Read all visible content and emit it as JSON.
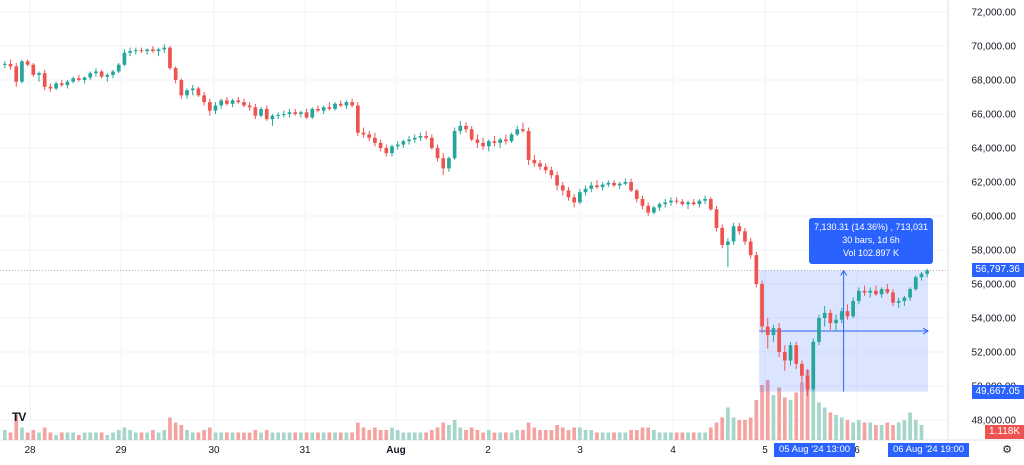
{
  "chart_data": {
    "type": "candlestick",
    "instrument_hint": "",
    "y_axis": {
      "min": 47500,
      "max": 72500,
      "ticks": [
        72000,
        70000,
        68000,
        66000,
        64000,
        62000,
        60000,
        58000,
        56000,
        54000,
        52000,
        50000,
        48000
      ],
      "tick_labels": [
        "72,000.00",
        "70,000.00",
        "68,000.00",
        "66,000.00",
        "64,000.00",
        "62,000.00",
        "60,000.00",
        "58,000.00",
        "56,000.00",
        "54,000.00",
        "52,000.00",
        "50,000.00",
        "48,000.00"
      ]
    },
    "x_axis": {
      "labels": [
        "28",
        "29",
        "30",
        "31",
        "Aug",
        "2",
        "3",
        "4",
        "5",
        "6"
      ]
    },
    "current_price": {
      "value": 56797.36,
      "label": "56,797.36"
    },
    "measure_low": {
      "value": 49667.05,
      "label": "49,667.05"
    },
    "volume_label": "1.118K",
    "grid": true,
    "colors": {
      "up": "#26a69a",
      "down": "#ef5350",
      "up_vol": "#a5d6c9",
      "down_vol": "#f5a3a1",
      "accent": "#2962ff",
      "grid": "#f0f3fa"
    },
    "candles": [
      [
        68900,
        69100,
        68700,
        68950
      ],
      [
        68950,
        69200,
        68600,
        68800
      ],
      [
        68800,
        69000,
        67600,
        67900
      ],
      [
        67900,
        69200,
        67800,
        69100
      ],
      [
        69100,
        69200,
        68800,
        68900
      ],
      [
        68900,
        69000,
        68200,
        68300
      ],
      [
        68300,
        68500,
        67900,
        68400
      ],
      [
        68400,
        68600,
        67400,
        67600
      ],
      [
        67600,
        67800,
        67300,
        67500
      ],
      [
        67500,
        67900,
        67400,
        67800
      ],
      [
        67800,
        68000,
        67600,
        67700
      ],
      [
        67700,
        68000,
        67500,
        67900
      ],
      [
        67900,
        68200,
        67800,
        68100
      ],
      [
        68100,
        68300,
        67900,
        68000
      ],
      [
        68000,
        68200,
        67800,
        68150
      ],
      [
        68150,
        68500,
        68000,
        68400
      ],
      [
        68400,
        68700,
        68200,
        68500
      ],
      [
        68500,
        68600,
        68100,
        68200
      ],
      [
        68200,
        68400,
        67900,
        68300
      ],
      [
        68300,
        68600,
        68100,
        68500
      ],
      [
        68500,
        69000,
        68400,
        68900
      ],
      [
        68900,
        69800,
        68800,
        69600
      ],
      [
        69600,
        69900,
        69400,
        69700
      ],
      [
        69700,
        69900,
        69500,
        69750
      ],
      [
        69750,
        69900,
        69600,
        69700
      ],
      [
        69700,
        69850,
        69500,
        69800
      ],
      [
        69800,
        70000,
        69600,
        69700
      ],
      [
        69700,
        69900,
        69400,
        69800
      ],
      [
        69800,
        70100,
        69600,
        69900
      ],
      [
        69900,
        70000,
        68600,
        68700
      ],
      [
        68700,
        68800,
        67800,
        68000
      ],
      [
        68000,
        68100,
        66900,
        67100
      ],
      [
        67100,
        67500,
        66900,
        67400
      ],
      [
        67400,
        67700,
        67100,
        67500
      ],
      [
        67500,
        67600,
        67000,
        67100
      ],
      [
        67100,
        67300,
        66500,
        66700
      ],
      [
        66700,
        66900,
        65900,
        66200
      ],
      [
        66200,
        66700,
        66000,
        66500
      ],
      [
        66500,
        66900,
        66300,
        66800
      ],
      [
        66800,
        67000,
        66500,
        66600
      ],
      [
        66600,
        66900,
        66400,
        66800
      ],
      [
        66800,
        67000,
        66600,
        66700
      ],
      [
        66700,
        66900,
        66400,
        66500
      ],
      [
        66500,
        66700,
        66200,
        66400
      ],
      [
        66400,
        66600,
        65700,
        65900
      ],
      [
        65900,
        66400,
        65800,
        66300
      ],
      [
        66300,
        66500,
        65600,
        65700
      ],
      [
        65700,
        66000,
        65300,
        65900
      ],
      [
        65900,
        66100,
        65700,
        65950
      ],
      [
        65950,
        66200,
        65800,
        66000
      ],
      [
        66000,
        66300,
        65800,
        66100
      ],
      [
        66100,
        66300,
        65900,
        66000
      ],
      [
        66000,
        66200,
        65800,
        66100
      ],
      [
        66100,
        66300,
        65700,
        65800
      ],
      [
        65800,
        66400,
        65700,
        66300
      ],
      [
        66300,
        66500,
        66100,
        66200
      ],
      [
        66200,
        66500,
        66000,
        66400
      ],
      [
        66400,
        66700,
        66200,
        66300
      ],
      [
        66300,
        66700,
        66200,
        66600
      ],
      [
        66600,
        66800,
        66400,
        66500
      ],
      [
        66500,
        66800,
        66300,
        66700
      ],
      [
        66700,
        66900,
        66400,
        66500
      ],
      [
        66500,
        66700,
        64700,
        64900
      ],
      [
        64900,
        65200,
        64600,
        64800
      ],
      [
        64800,
        65000,
        64400,
        64600
      ],
      [
        64600,
        64900,
        64100,
        64300
      ],
      [
        64300,
        64500,
        63800,
        64000
      ],
      [
        64000,
        64200,
        63500,
        63700
      ],
      [
        63700,
        64200,
        63500,
        64100
      ],
      [
        64100,
        64400,
        63900,
        64200
      ],
      [
        64200,
        64500,
        64000,
        64400
      ],
      [
        64400,
        64700,
        64200,
        64500
      ],
      [
        64500,
        64800,
        64300,
        64600
      ],
      [
        64600,
        64900,
        64400,
        64700
      ],
      [
        64700,
        65000,
        64500,
        64600
      ],
      [
        64600,
        64800,
        63900,
        64000
      ],
      [
        64000,
        64200,
        63200,
        63400
      ],
      [
        63400,
        63700,
        62400,
        62800
      ],
      [
        62800,
        63500,
        62600,
        63400
      ],
      [
        63400,
        65200,
        63300,
        65000
      ],
      [
        65000,
        65600,
        64800,
        65300
      ],
      [
        65300,
        65500,
        64900,
        65100
      ],
      [
        65100,
        65300,
        64400,
        64500
      ],
      [
        64500,
        64800,
        64000,
        64300
      ],
      [
        64300,
        64600,
        63900,
        64100
      ],
      [
        64100,
        64500,
        63800,
        64400
      ],
      [
        64400,
        64700,
        64100,
        64300
      ],
      [
        64300,
        64600,
        64000,
        64500
      ],
      [
        64500,
        64800,
        64200,
        64400
      ],
      [
        64400,
        64900,
        64300,
        64800
      ],
      [
        64800,
        65300,
        64700,
        65100
      ],
      [
        65100,
        65500,
        64900,
        65000
      ],
      [
        65000,
        65200,
        63000,
        63300
      ],
      [
        63300,
        63600,
        62900,
        63100
      ],
      [
        63100,
        63300,
        62700,
        62900
      ],
      [
        62900,
        63100,
        62500,
        62700
      ],
      [
        62700,
        62900,
        62200,
        62400
      ],
      [
        62400,
        62600,
        61500,
        61800
      ],
      [
        61800,
        62000,
        61200,
        61500
      ],
      [
        61500,
        61700,
        60900,
        61100
      ],
      [
        61100,
        61300,
        60500,
        60800
      ],
      [
        60800,
        61600,
        60700,
        61400
      ],
      [
        61400,
        61800,
        61200,
        61600
      ],
      [
        61600,
        62000,
        61400,
        61800
      ],
      [
        61800,
        62100,
        61600,
        61700
      ],
      [
        61700,
        62000,
        61500,
        61850
      ],
      [
        61850,
        62100,
        61700,
        61950
      ],
      [
        61950,
        62100,
        61700,
        61800
      ],
      [
        61800,
        62000,
        61600,
        61900
      ],
      [
        61900,
        62200,
        61800,
        62000
      ],
      [
        62000,
        62200,
        61400,
        61500
      ],
      [
        61500,
        61600,
        60800,
        61000
      ],
      [
        61000,
        61200,
        60400,
        60600
      ],
      [
        60600,
        60800,
        60000,
        60200
      ],
      [
        60200,
        60600,
        60100,
        60500
      ],
      [
        60500,
        60800,
        60300,
        60700
      ],
      [
        60700,
        61000,
        60500,
        60800
      ],
      [
        60800,
        61100,
        60600,
        60900
      ],
      [
        60900,
        61100,
        60700,
        60850
      ],
      [
        60850,
        61000,
        60600,
        60700
      ],
      [
        60700,
        60900,
        60400,
        60800
      ],
      [
        60800,
        61000,
        60600,
        60700
      ],
      [
        60700,
        61000,
        60500,
        60900
      ],
      [
        60900,
        61200,
        60700,
        61000
      ],
      [
        61000,
        61100,
        60300,
        60400
      ],
      [
        60400,
        60600,
        59100,
        59300
      ],
      [
        59300,
        59500,
        58100,
        58300
      ],
      [
        58300,
        58700,
        57000,
        58500
      ],
      [
        58500,
        59600,
        58300,
        59400
      ],
      [
        59400,
        59600,
        58900,
        59100
      ],
      [
        59100,
        59300,
        58300,
        58500
      ],
      [
        58500,
        58700,
        57500,
        57700
      ],
      [
        57700,
        57900,
        55800,
        56000
      ],
      [
        56000,
        56200,
        53100,
        53500
      ],
      [
        53500,
        54000,
        52200,
        53000
      ],
      [
        53000,
        53600,
        52600,
        53400
      ],
      [
        53400,
        53700,
        51700,
        52000
      ],
      [
        52000,
        52400,
        50900,
        51500
      ],
      [
        51500,
        52600,
        51200,
        52400
      ],
      [
        52400,
        52600,
        51000,
        51300
      ],
      [
        51300,
        51500,
        50200,
        50600
      ],
      [
        50600,
        51000,
        49400,
        49800
      ],
      [
        49800,
        52800,
        49700,
        52600
      ],
      [
        52600,
        54200,
        52400,
        54000
      ],
      [
        54000,
        54700,
        53500,
        54300
      ],
      [
        54300,
        54500,
        53300,
        53700
      ],
      [
        53700,
        54200,
        53200,
        53900
      ],
      [
        53900,
        54600,
        53700,
        54400
      ],
      [
        54400,
        54800,
        53900,
        54100
      ],
      [
        54100,
        55200,
        54000,
        55000
      ],
      [
        55000,
        55800,
        54800,
        55600
      ],
      [
        55600,
        55900,
        55300,
        55500
      ],
      [
        55500,
        55800,
        55200,
        55600
      ],
      [
        55600,
        55900,
        55300,
        55400
      ],
      [
        55400,
        55800,
        55200,
        55700
      ],
      [
        55700,
        56000,
        55400,
        55500
      ],
      [
        55500,
        55700,
        54700,
        54900
      ],
      [
        54900,
        55200,
        54600,
        55000
      ],
      [
        55000,
        55300,
        54700,
        55200
      ],
      [
        55200,
        55800,
        55000,
        55700
      ],
      [
        55700,
        56500,
        55600,
        56400
      ],
      [
        56400,
        56700,
        56200,
        56600
      ],
      [
        56600,
        56900,
        56400,
        56797
      ]
    ],
    "volumes": [
      0.4,
      0.3,
      1.0,
      0.5,
      0.3,
      0.4,
      0.3,
      0.5,
      0.3,
      0.2,
      0.3,
      0.3,
      0.3,
      0.2,
      0.3,
      0.3,
      0.3,
      0.3,
      0.2,
      0.3,
      0.4,
      0.5,
      0.4,
      0.3,
      0.3,
      0.3,
      0.4,
      0.3,
      0.4,
      0.9,
      0.7,
      0.6,
      0.4,
      0.3,
      0.3,
      0.4,
      0.5,
      0.3,
      0.3,
      0.3,
      0.3,
      0.3,
      0.3,
      0.3,
      0.4,
      0.3,
      0.4,
      0.3,
      0.3,
      0.3,
      0.3,
      0.3,
      0.3,
      0.3,
      0.3,
      0.3,
      0.3,
      0.3,
      0.3,
      0.3,
      0.3,
      0.3,
      0.7,
      0.5,
      0.4,
      0.5,
      0.4,
      0.4,
      0.5,
      0.4,
      0.3,
      0.3,
      0.3,
      0.3,
      0.3,
      0.4,
      0.5,
      0.7,
      0.6,
      0.8,
      0.5,
      0.4,
      0.5,
      0.4,
      0.3,
      0.4,
      0.3,
      0.3,
      0.3,
      0.3,
      0.4,
      0.4,
      0.7,
      0.5,
      0.4,
      0.4,
      0.4,
      0.6,
      0.5,
      0.4,
      0.5,
      0.5,
      0.4,
      0.4,
      0.3,
      0.3,
      0.3,
      0.3,
      0.3,
      0.3,
      0.4,
      0.4,
      0.5,
      0.5,
      0.4,
      0.3,
      0.3,
      0.3,
      0.3,
      0.3,
      0.3,
      0.3,
      0.3,
      0.3,
      0.5,
      0.7,
      0.9,
      1.3,
      0.9,
      0.8,
      0.8,
      0.9,
      1.6,
      2.2,
      2.4,
      1.8,
      2.1,
      1.7,
      1.6,
      1.9,
      2.3,
      2.8,
      2.0,
      1.5,
      1.3,
      1.1,
      1.0,
      0.9,
      0.8,
      0.7,
      0.8,
      0.7,
      0.7,
      0.6,
      0.6,
      0.7,
      0.6,
      0.7,
      0.8,
      1.1,
      0.8,
      0.6
    ]
  },
  "measure": {
    "line1": "7,130.31 (14.36%) , 713,031",
    "line2": "30 bars, 1d 6h",
    "line3": "Vol 102.897 K"
  },
  "dates": {
    "start": "05 Aug '24   13:00",
    "end": "06 Aug '24   19:00"
  },
  "ui": {
    "logo": "TV",
    "settings_icon": "settings-icon"
  }
}
